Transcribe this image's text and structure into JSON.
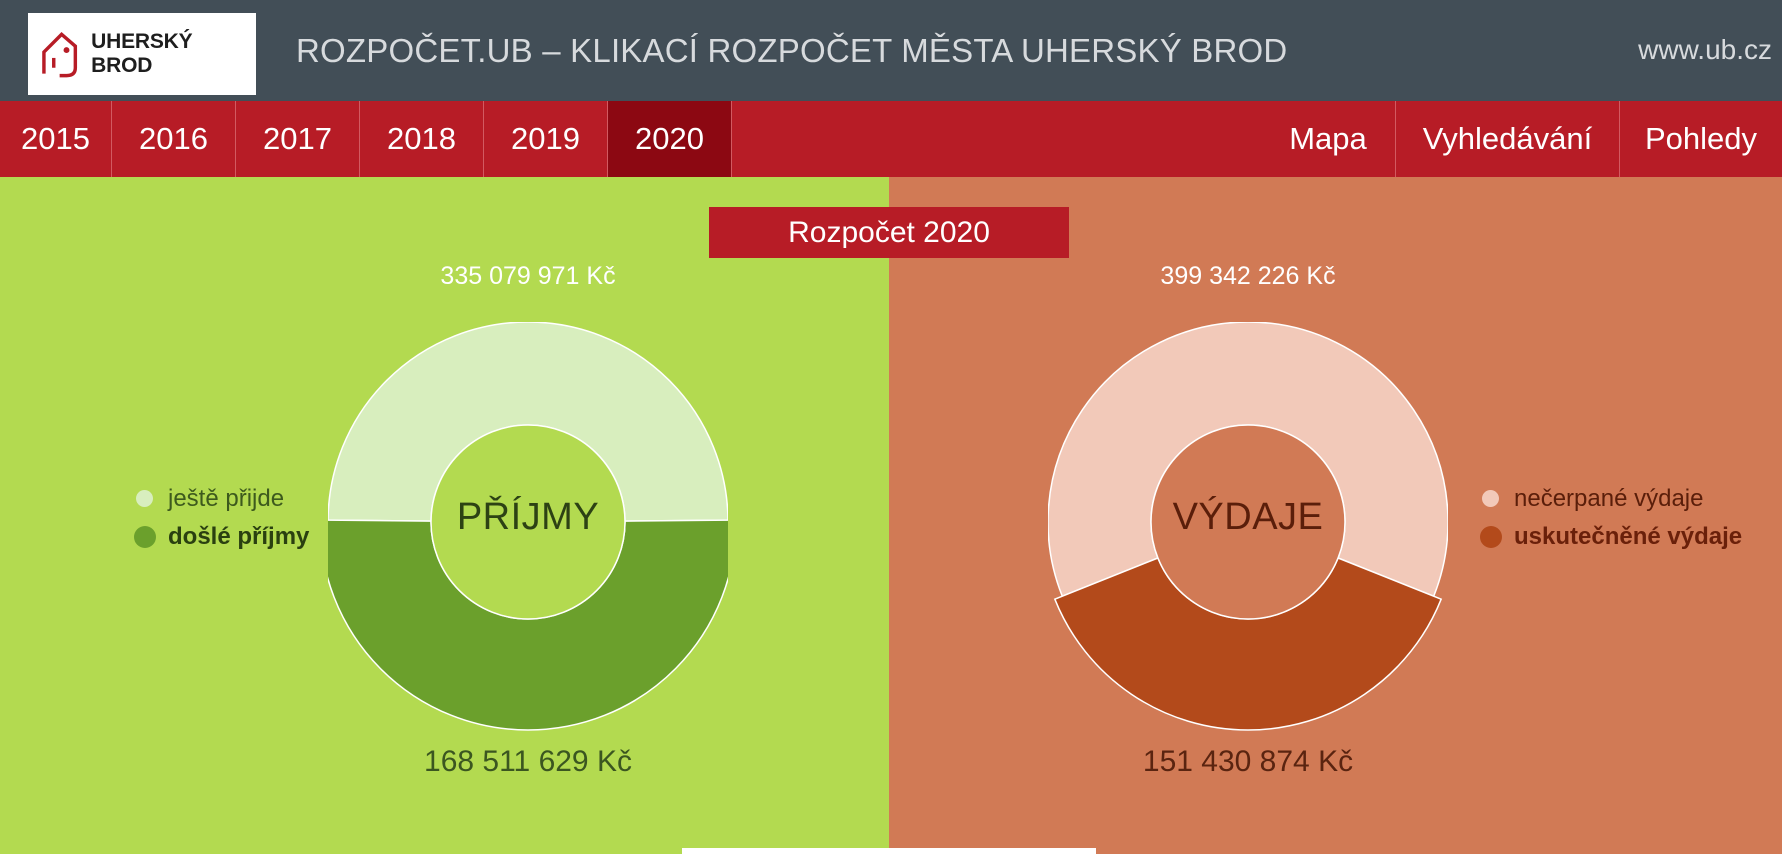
{
  "header": {
    "logo_text": "UHERSKÝ BROD",
    "site_title": "ROZPOČET.UB – KLIKACÍ ROZPOČET MĚSTA UHERSKÝ BROD",
    "site_url": "www.ub.cz"
  },
  "nav": {
    "years": [
      {
        "label": "2015",
        "active": false
      },
      {
        "label": "2016",
        "active": false
      },
      {
        "label": "2017",
        "active": false
      },
      {
        "label": "2018",
        "active": false
      },
      {
        "label": "2019",
        "active": false
      },
      {
        "label": "2020",
        "active": true
      }
    ],
    "links": [
      {
        "label": "Mapa"
      },
      {
        "label": "Vyhledávání"
      },
      {
        "label": "Pohledy"
      }
    ]
  },
  "budget_title": "Rozpočet 2020",
  "income": {
    "total": "335 079 971 Kč",
    "received": "168 511 629 Kč",
    "center_label": "PŘÍJMY",
    "received_fraction": 0.503,
    "legend": {
      "remaining": "ještě přijde",
      "received": "došlé příjmy"
    },
    "colors": {
      "remaining": "#d8eebe",
      "received": "#6ba02c",
      "center": "#b3da50",
      "text": "#2d4214"
    }
  },
  "expenses": {
    "total": "399 342 226 Kč",
    "spent": "151 430 874 Kč",
    "center_label": "VÝDAJE",
    "spent_fraction": 0.379,
    "legend": {
      "remaining": "nečerpané výdaje",
      "spent": "uskutečněné výdaje"
    },
    "colors": {
      "remaining": "#f2c9b9",
      "spent": "#b34a1b",
      "center": "#d17a55",
      "text": "#5a1e0a"
    }
  }
}
